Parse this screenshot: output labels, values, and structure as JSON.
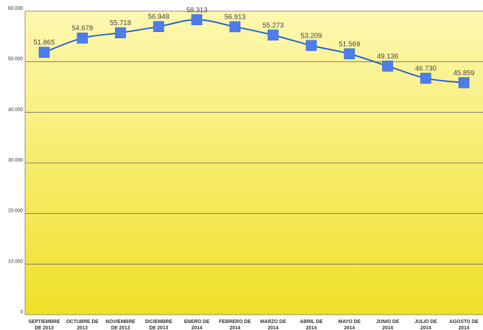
{
  "chart_data": {
    "type": "line",
    "title": "",
    "xlabel": "",
    "ylabel": "",
    "ylim": [
      0,
      60000
    ],
    "y_ticks": [
      "0",
      "10.000",
      "20.000",
      "30.000",
      "40.000",
      "50.000",
      "60.000"
    ],
    "grid": true,
    "smooth": true,
    "marker": "square",
    "colors": {
      "line": "#1f5fd6",
      "marker": "#4d7de8",
      "background_top": "#fdf8b0",
      "background_bottom": "#f0e028",
      "gridline": "#666666"
    },
    "categories": [
      [
        "SEPTIEMBRE",
        "DE 2013"
      ],
      [
        "OCTUBRE DE",
        "2013"
      ],
      [
        "NOVIEMBRE",
        "DE 2013"
      ],
      [
        "DICIEMBRE",
        "DE 2013"
      ],
      [
        "ENERO DE",
        "2014"
      ],
      [
        "FEBRERO DE",
        "2014"
      ],
      [
        "MARZO DE",
        "2014"
      ],
      [
        "ABRIL DE",
        "2014"
      ],
      [
        "MAYO DE",
        "2014"
      ],
      [
        "JUNIO DE",
        "2014"
      ],
      [
        "JULIO DE",
        "2014"
      ],
      [
        "AGOSTO DE",
        "2014"
      ]
    ],
    "series": [
      {
        "values": [
          51865,
          54678,
          55718,
          56948,
          58313,
          56913,
          55273,
          53209,
          51569,
          49136,
          46730,
          45859
        ],
        "labels": [
          "51.865",
          "54.678",
          "55.718",
          "56.948",
          "58.313",
          "56.913",
          "55.273",
          "53.209",
          "51.569",
          "49.136",
          "46.730",
          "45.859"
        ]
      }
    ]
  }
}
